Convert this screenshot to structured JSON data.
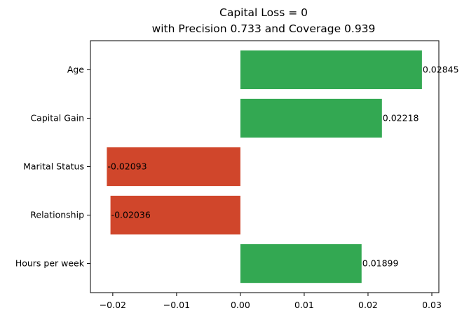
{
  "chart_data": {
    "type": "bar",
    "orientation": "horizontal",
    "title": "Capital Loss = 0",
    "subtitle": "with Precision 0.733 and Coverage 0.939",
    "xlabel": "",
    "ylabel": "",
    "categories": [
      "Age",
      "Capital Gain",
      "Marital Status",
      "Relationship",
      "Hours per week"
    ],
    "values": [
      0.02845,
      0.02218,
      -0.02093,
      -0.02036,
      0.01899
    ],
    "labels": [
      "0.02845",
      "0.02218",
      "-0.02093",
      "-0.02036",
      "0.01899"
    ],
    "xlim": [
      -0.0235,
      0.0311
    ],
    "xticks": [
      -0.02,
      -0.01,
      0.0,
      0.01,
      0.02,
      0.03
    ],
    "xtick_labels": [
      "−0.02",
      "−0.01",
      "0.00",
      "0.01",
      "0.02",
      "0.03"
    ],
    "grid": false,
    "legend": "none",
    "colors": {
      "positive": "#33a852",
      "negative": "#d0462b"
    }
  }
}
